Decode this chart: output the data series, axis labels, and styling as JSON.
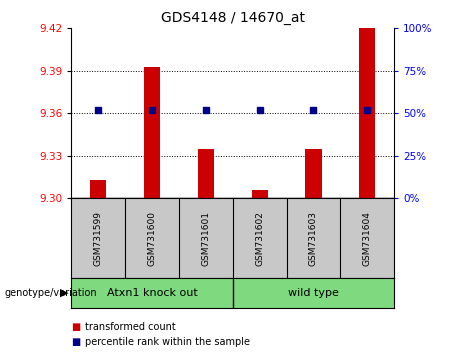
{
  "title": "GDS4148 / 14670_at",
  "samples": [
    "GSM731599",
    "GSM731600",
    "GSM731601",
    "GSM731602",
    "GSM731603",
    "GSM731604"
  ],
  "red_values": [
    9.313,
    9.393,
    9.335,
    9.306,
    9.335,
    9.42
  ],
  "blue_values": [
    9.362,
    9.362,
    9.362,
    9.362,
    9.362,
    9.362
  ],
  "y_min": 9.3,
  "y_max": 9.42,
  "y_ticks_left": [
    9.3,
    9.33,
    9.36,
    9.39,
    9.42
  ],
  "y_ticks_right": [
    0,
    25,
    50,
    75,
    100
  ],
  "group_labels": [
    "Atxn1 knock out",
    "wild type"
  ],
  "group_colors": [
    "#7FD97F",
    "#7FD97F"
  ],
  "bar_color": "#CC0000",
  "dot_color": "#00008B",
  "bar_width": 0.3,
  "genotype_label": "genotype/variation",
  "legend_labels": [
    "transformed count",
    "percentile rank within the sample"
  ],
  "gray_color": "#C8C8C8"
}
